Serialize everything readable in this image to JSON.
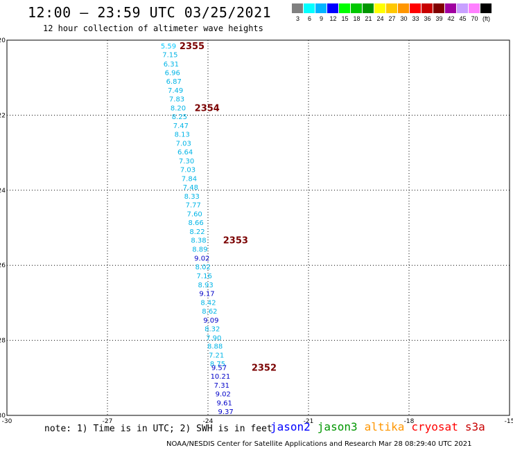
{
  "header": {
    "title": "12:00 – 23:59 UTC 03/25/2021",
    "subtitle": "12 hour collection of altimeter wave heights"
  },
  "colorbar": {
    "colors": [
      "#808080",
      "#00ffff",
      "#00b4ff",
      "#0000ff",
      "#00ff00",
      "#00c800",
      "#009600",
      "#ffff00",
      "#ffc800",
      "#ff9600",
      "#ff0000",
      "#c80000",
      "#800000",
      "#a000a0",
      "#c8a0ff",
      "#ff80ff",
      "#000000"
    ],
    "labels": [
      "3",
      "6",
      "9",
      "12",
      "15",
      "18",
      "21",
      "24",
      "27",
      "30",
      "33",
      "36",
      "39",
      "42",
      "45",
      "70",
      "(ft)"
    ]
  },
  "footer": {
    "note": "note: 1) Time is in UTC; 2) SWH is in feet",
    "satellites": [
      {
        "name": "jason2",
        "color": "#0000ff"
      },
      {
        "name": "jason3",
        "color": "#009600"
      },
      {
        "name": "altika",
        "color": "#ff9600"
      },
      {
        "name": "cryosat",
        "color": "#ff0000"
      },
      {
        "name": "s3a",
        "color": "#c80000"
      }
    ],
    "credit": "NOAA/NESDIS Center for Satellite Applications and Research    Mar 28 08:29:40 UTC 2021"
  },
  "chart_data": {
    "type": "scatter",
    "title": "12:00 – 23:59 UTC 03/25/2021",
    "subtitle": "12 hour collection of altimeter wave heights",
    "xlim": [
      -30,
      -15
    ],
    "ylim": [
      -30,
      -20
    ],
    "xticks": [
      -30,
      -27,
      -24,
      -21,
      -18,
      -15
    ],
    "yticks": [
      -20,
      -22,
      -24,
      -26,
      -28,
      -30
    ],
    "grid": true,
    "points": [
      {
        "x": -25.18,
        "y": -20.15,
        "value": "5.59",
        "color": "#00c8ff"
      },
      {
        "x": -25.13,
        "y": -20.38,
        "value": "7.15",
        "color": "#00b4e6"
      },
      {
        "x": -25.1,
        "y": -20.63,
        "value": "6.31",
        "color": "#00b4e6"
      },
      {
        "x": -25.06,
        "y": -20.86,
        "value": "6.96",
        "color": "#00b4e6"
      },
      {
        "x": -25.02,
        "y": -21.09,
        "value": "6.87",
        "color": "#00b4e6"
      },
      {
        "x": -24.97,
        "y": -21.33,
        "value": "7.49",
        "color": "#00b4e6"
      },
      {
        "x": -24.93,
        "y": -21.56,
        "value": "7.83",
        "color": "#00b4e6"
      },
      {
        "x": -24.89,
        "y": -21.8,
        "value": "8.20",
        "color": "#00b4e6"
      },
      {
        "x": -24.85,
        "y": -22.03,
        "value": "8.25",
        "color": "#00b4e6"
      },
      {
        "x": -24.81,
        "y": -22.27,
        "value": "7.47",
        "color": "#00b4e6"
      },
      {
        "x": -24.77,
        "y": -22.5,
        "value": "8.13",
        "color": "#00b4e6"
      },
      {
        "x": -24.73,
        "y": -22.74,
        "value": "7.03",
        "color": "#00b4e6"
      },
      {
        "x": -24.68,
        "y": -22.97,
        "value": "6.64",
        "color": "#00b4e6"
      },
      {
        "x": -24.64,
        "y": -23.21,
        "value": "7.30",
        "color": "#00b4e6"
      },
      {
        "x": -24.6,
        "y": -23.44,
        "value": "7.03",
        "color": "#00b4e6"
      },
      {
        "x": -24.56,
        "y": -23.68,
        "value": "7.84",
        "color": "#00b4e6"
      },
      {
        "x": -24.52,
        "y": -23.91,
        "value": "7.48",
        "color": "#00b4e6"
      },
      {
        "x": -24.48,
        "y": -24.15,
        "value": "8.33",
        "color": "#00b4e6"
      },
      {
        "x": -24.44,
        "y": -24.38,
        "value": "7.77",
        "color": "#00b4e6"
      },
      {
        "x": -24.4,
        "y": -24.62,
        "value": "7.60",
        "color": "#00b4e6"
      },
      {
        "x": -24.36,
        "y": -24.85,
        "value": "8.66",
        "color": "#00b4e6"
      },
      {
        "x": -24.32,
        "y": -25.09,
        "value": "8.22",
        "color": "#00b4e6"
      },
      {
        "x": -24.28,
        "y": -25.32,
        "value": "8.38",
        "color": "#00b4e6"
      },
      {
        "x": -24.24,
        "y": -25.56,
        "value": "8.89",
        "color": "#00b4e6"
      },
      {
        "x": -24.18,
        "y": -25.8,
        "value": "9.02",
        "color": "#0000c8"
      },
      {
        "x": -24.15,
        "y": -26.03,
        "value": "8.02",
        "color": "#00b4e6"
      },
      {
        "x": -24.11,
        "y": -26.27,
        "value": "7.16",
        "color": "#00b4e6"
      },
      {
        "x": -24.07,
        "y": -26.51,
        "value": "8.93",
        "color": "#00b4e6"
      },
      {
        "x": -24.03,
        "y": -26.74,
        "value": "9.17",
        "color": "#0000c8"
      },
      {
        "x": -23.99,
        "y": -26.98,
        "value": "8.42",
        "color": "#00b4e6"
      },
      {
        "x": -23.95,
        "y": -27.21,
        "value": "8.62",
        "color": "#00b4e6"
      },
      {
        "x": -23.91,
        "y": -27.45,
        "value": "9.09",
        "color": "#0000c8"
      },
      {
        "x": -23.87,
        "y": -27.68,
        "value": "8.32",
        "color": "#00b4e6"
      },
      {
        "x": -23.83,
        "y": -27.92,
        "value": "7.90",
        "color": "#00b4e6"
      },
      {
        "x": -23.79,
        "y": -28.15,
        "value": "8.88",
        "color": "#00b4e6"
      },
      {
        "x": -23.75,
        "y": -28.39,
        "value": "7.21",
        "color": "#00b4e6"
      },
      {
        "x": -23.71,
        "y": -28.62,
        "value": "8.75",
        "color": "#00b4e6"
      },
      {
        "x": -23.67,
        "y": -28.72,
        "value": "9.57",
        "color": "#0000c8"
      },
      {
        "x": -23.63,
        "y": -28.95,
        "value": "10.21",
        "color": "#0000c8"
      },
      {
        "x": -23.59,
        "y": -29.19,
        "value": "7.31",
        "color": "#0000c8"
      },
      {
        "x": -23.55,
        "y": -29.42,
        "value": "9.02",
        "color": "#0000c8"
      },
      {
        "x": -23.51,
        "y": -29.66,
        "value": "9.61",
        "color": "#0000c8"
      },
      {
        "x": -23.47,
        "y": -29.89,
        "value": "9.37",
        "color": "#0000c8"
      }
    ],
    "pass_labels": [
      {
        "text": "2355",
        "x": -24.85,
        "y": -20.15
      },
      {
        "text": "2354",
        "x": -24.4,
        "y": -21.8
      },
      {
        "text": "2353",
        "x": -23.55,
        "y": -25.32
      },
      {
        "text": "2352",
        "x": -22.7,
        "y": -28.72
      }
    ]
  }
}
